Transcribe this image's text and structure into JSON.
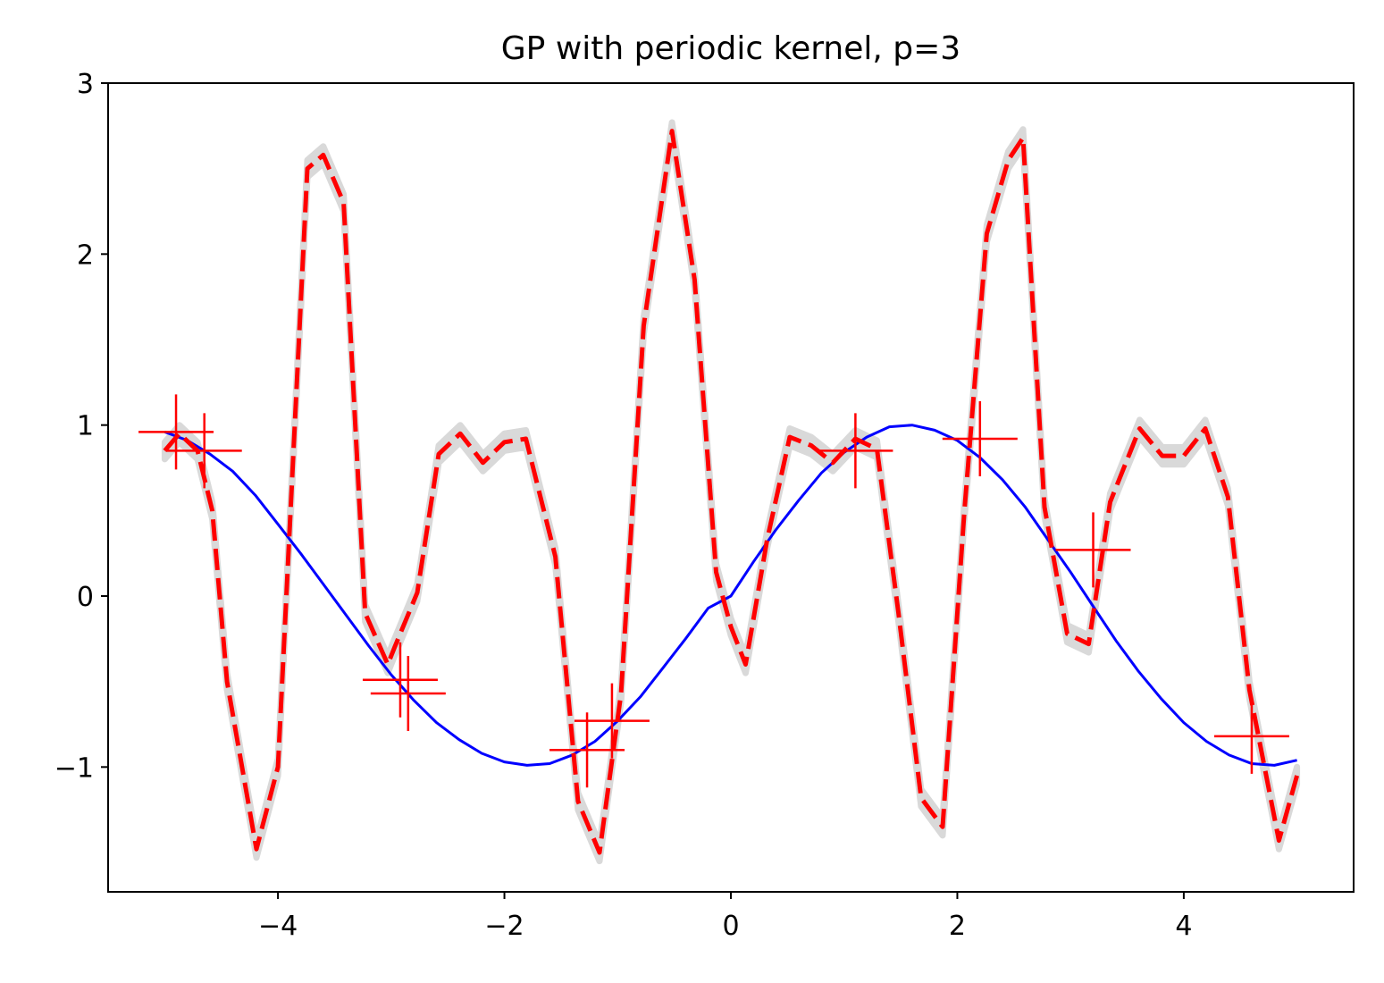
{
  "chart_data": {
    "type": "line",
    "title": "GP with periodic kernel, p=3",
    "xlabel": "",
    "ylabel": "",
    "xlim": [
      -5.5,
      5.5
    ],
    "ylim": [
      -1.73,
      3.0
    ],
    "x_ticks": [
      -4,
      -2,
      0,
      2,
      4
    ],
    "x_tick_labels": [
      "−4",
      "−2",
      "0",
      "2",
      "4"
    ],
    "y_ticks": [
      -1,
      0,
      1,
      2,
      3
    ],
    "y_tick_labels": [
      "−1",
      "0",
      "1",
      "2",
      "3"
    ],
    "grid": false,
    "legend": "none",
    "colors": {
      "true_function": "#0000ff",
      "gp_mean": "#ff0000",
      "confidence_band": "#d9d9d9",
      "observations": "#ff0000"
    },
    "series": [
      {
        "style": "solid",
        "x": [
          -5.0,
          -4.8,
          -4.6,
          -4.4,
          -4.2,
          -4.0,
          -3.8,
          -3.6,
          -3.4,
          -3.2,
          -3.0,
          -2.8,
          -2.6,
          -2.4,
          -2.2,
          -2.0,
          -1.8,
          -1.6,
          -1.4,
          -1.2,
          -1.0,
          -0.8,
          -0.6,
          -0.4,
          -0.2,
          0.0,
          0.2,
          0.4,
          0.6,
          0.8,
          1.0,
          1.2,
          1.4,
          1.6,
          1.8,
          2.0,
          2.2,
          2.4,
          2.6,
          2.8,
          3.0,
          3.2,
          3.4,
          3.6,
          3.8,
          4.0,
          4.2,
          4.4,
          4.6,
          4.8,
          5.0
        ],
        "y": [
          0.96,
          0.91,
          0.83,
          0.73,
          0.59,
          0.42,
          0.25,
          0.07,
          -0.11,
          -0.29,
          -0.46,
          -0.61,
          -0.74,
          -0.84,
          -0.92,
          -0.97,
          -0.99,
          -0.98,
          -0.93,
          -0.85,
          -0.73,
          -0.59,
          -0.42,
          -0.25,
          -0.07,
          0.0,
          0.2,
          0.39,
          0.56,
          0.72,
          0.84,
          0.93,
          0.99,
          1.0,
          0.97,
          0.91,
          0.81,
          0.68,
          0.52,
          0.33,
          0.14,
          -0.06,
          -0.26,
          -0.44,
          -0.6,
          -0.74,
          -0.85,
          -0.93,
          -0.98,
          -0.99,
          -0.96
        ]
      },
      {
        "style": "dashed",
        "band_halfwidth": 0.05,
        "x": [
          -5.0,
          -4.87,
          -4.71,
          -4.58,
          -4.45,
          -4.19,
          -4.0,
          -3.74,
          -3.6,
          -3.42,
          -3.23,
          -3.03,
          -2.97,
          -2.77,
          -2.58,
          -2.39,
          -2.19,
          -2.0,
          -1.81,
          -1.55,
          -1.35,
          -1.16,
          -0.97,
          -0.77,
          -0.52,
          -0.32,
          -0.13,
          0.0,
          0.13,
          0.32,
          0.52,
          0.71,
          0.9,
          1.1,
          1.29,
          1.48,
          1.68,
          1.87,
          2.06,
          2.26,
          2.45,
          2.58,
          2.77,
          2.97,
          3.16,
          3.35,
          3.61,
          3.81,
          4.0,
          4.19,
          4.39,
          4.58,
          4.84,
          5.0
        ],
        "y": [
          0.85,
          0.95,
          0.85,
          0.5,
          -0.5,
          -1.48,
          -1.0,
          2.5,
          2.58,
          2.3,
          -0.1,
          -0.4,
          -0.3,
          0.02,
          0.83,
          0.95,
          0.78,
          0.9,
          0.92,
          0.23,
          -1.2,
          -1.5,
          -0.57,
          1.58,
          2.72,
          1.85,
          0.14,
          -0.18,
          -0.4,
          0.33,
          0.93,
          0.88,
          0.78,
          0.92,
          0.86,
          -0.1,
          -1.18,
          -1.35,
          0.48,
          2.12,
          2.55,
          2.68,
          0.52,
          -0.22,
          -0.28,
          0.55,
          0.98,
          0.82,
          0.82,
          0.98,
          0.58,
          -0.55,
          -1.43,
          -1.05
        ]
      }
    ],
    "observations": {
      "marker": "+",
      "x": [
        -4.9,
        -4.65,
        -2.92,
        -2.85,
        -1.27,
        -1.05,
        1.1,
        2.2,
        3.2,
        4.6
      ],
      "y": [
        0.96,
        0.85,
        -0.49,
        -0.57,
        -0.9,
        -0.73,
        0.85,
        0.92,
        0.27,
        -0.82
      ]
    }
  }
}
